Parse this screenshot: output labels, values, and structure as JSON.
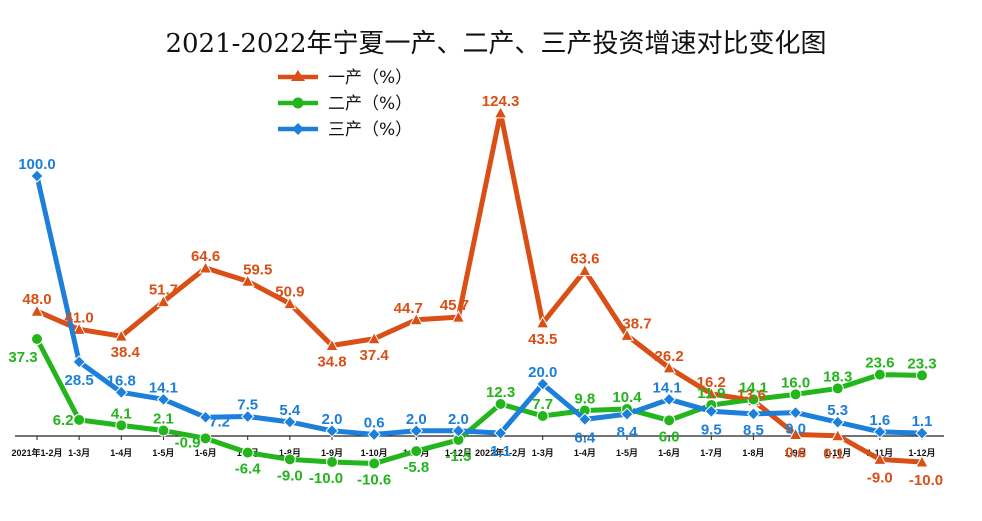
{
  "chart_data": {
    "type": "line",
    "title": "2021-2022年宁夏一产、二产、三产投资增速对比变化图",
    "categories": [
      "2021年1-2月",
      "1-3月",
      "1-4月",
      "1-5月",
      "1-6月",
      "1-7月",
      "1-8月",
      "1-9月",
      "1-10月",
      "1-11月",
      "1-12月",
      "2022年1-2月",
      "1-3月",
      "1-4月",
      "1-5月",
      "1-6月",
      "1-7月",
      "1-8月",
      "1-9月",
      "1-10月",
      "1-11月",
      "1-12月"
    ],
    "tick_labels": [
      "2021年1-2月",
      "1-3月",
      "1-4月",
      "1-5月",
      "1-6月",
      "1-7月",
      "1-8月",
      "1-9月",
      "1-10月",
      "1-11月",
      "1-12月",
      "2022年1-2月",
      "1-3月",
      "1-4月",
      "1-5月",
      "1-6月",
      "1-7月",
      "1-8月",
      "1-9月",
      "1-10月",
      "1-11月",
      "1-12月"
    ],
    "ylim": [
      -14,
      130
    ],
    "legend_position": "top-left",
    "grid": false,
    "series": [
      {
        "name": "一产（%）",
        "color": "#D94F16",
        "marker": "triangle",
        "values": [
          48.0,
          41.0,
          38.4,
          51.7,
          64.6,
          59.5,
          50.9,
          34.8,
          37.4,
          44.7,
          45.7,
          124.3,
          43.5,
          63.6,
          38.7,
          26.2,
          16.2,
          13.6,
          0.6,
          0.1,
          -9.0,
          -10.0
        ]
      },
      {
        "name": "二产（%）",
        "color": "#22B51C",
        "marker": "circle",
        "values": [
          37.3,
          6.2,
          4.1,
          2.1,
          -0.9,
          -6.4,
          -9.0,
          -10.0,
          -10.6,
          -5.8,
          -1.5,
          12.3,
          7.7,
          9.8,
          10.4,
          6.0,
          11.9,
          14.1,
          16.0,
          18.3,
          23.6,
          23.3
        ]
      },
      {
        "name": "三产（%）",
        "color": "#1C7FD9",
        "marker": "diamond",
        "values": [
          100.0,
          28.5,
          16.8,
          14.1,
          7.2,
          7.5,
          5.4,
          2.0,
          0.6,
          2.0,
          2.0,
          1.1,
          20.0,
          6.4,
          8.4,
          14.1,
          9.5,
          8.5,
          9.0,
          5.3,
          1.6,
          1.1
        ]
      }
    ],
    "labels": {
      "s0": [
        "48.0",
        "41.0",
        "38.4",
        "51.7",
        "64.6",
        "59.5",
        "50.9",
        "34.8",
        "37.4",
        "44.7",
        "45.7",
        "124.3",
        "43.5",
        "63.6",
        "38.7",
        "26.2",
        "16.2",
        "13.6",
        "0.6",
        "0.1",
        "-9.0",
        "-10.0"
      ],
      "s1": [
        "37.3",
        "6.2",
        "4.1",
        "2.1",
        "-0.9",
        "-6.4",
        "-9.0",
        "-10.0",
        "-10.6",
        "-5.8",
        "-1.5",
        "12.3",
        "7.7",
        "9.8",
        "10.4",
        "6.0",
        "11.9",
        "14.1",
        "16.0",
        "18.3",
        "23.6",
        "23.3"
      ],
      "s2": [
        "100.0",
        "28.5",
        "16.8",
        "14.1",
        "7.2",
        "7.5",
        "5.4",
        "2.0",
        "0.6",
        "2.0",
        "2.0",
        "1.1",
        "20.0",
        "6.4",
        "8.4",
        "14.1",
        "9.5",
        "8.5",
        "9.0",
        "5.3",
        "1.6",
        "1.1"
      ]
    }
  }
}
